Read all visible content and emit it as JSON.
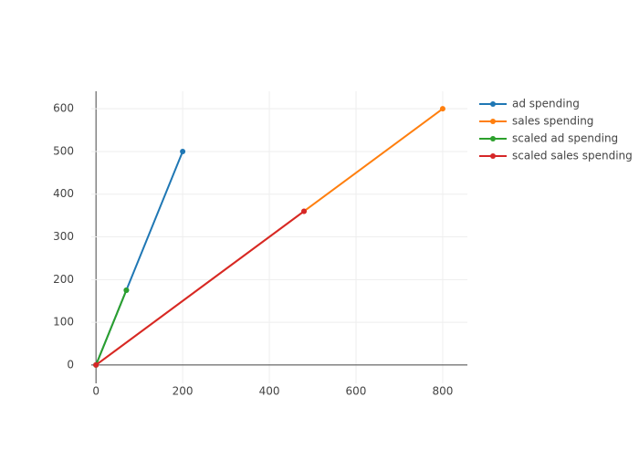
{
  "chart_data": {
    "type": "line",
    "series": [
      {
        "name": "ad spending",
        "color": "#1f77b4",
        "x": [
          0,
          70,
          200
        ],
        "values": [
          0,
          175,
          500
        ]
      },
      {
        "name": "sales spending",
        "color": "#ff7f0e",
        "x": [
          0,
          480,
          800
        ],
        "values": [
          0,
          360,
          600
        ]
      },
      {
        "name": "scaled ad spending",
        "color": "#2ca02c",
        "x": [
          0,
          70
        ],
        "values": [
          0,
          175
        ]
      },
      {
        "name": "scaled sales spending",
        "color": "#d62728",
        "x": [
          0,
          480
        ],
        "values": [
          0,
          360
        ]
      }
    ],
    "xlim": [
      -53,
      857
    ],
    "xticks": [
      0,
      200,
      400,
      600,
      800
    ],
    "ylim": [
      -43,
      641
    ],
    "yticks": [
      0,
      100,
      200,
      300,
      400,
      500,
      600
    ],
    "grid": true,
    "legend": "right"
  }
}
